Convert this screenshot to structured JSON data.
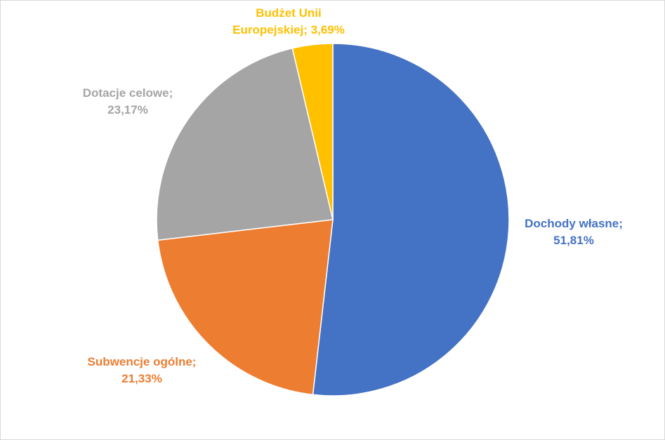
{
  "chart_data": {
    "type": "pie",
    "title": "",
    "start_angle_deg": 0,
    "direction": "clockwise",
    "slices": [
      {
        "category": "Dochody własne",
        "value": 51.81,
        "label_line1": "Dochody własne;",
        "label_line2": "51,81%",
        "color": "#4472C4"
      },
      {
        "category": "Subwencje ogólne",
        "value": 21.33,
        "label_line1": "Subwencje ogólne;",
        "label_line2": "21,33%",
        "color": "#ED7D31"
      },
      {
        "category": "Dotacje celowe",
        "value": 23.17,
        "label_line1": "Dotacje celowe;",
        "label_line2": "23,17%",
        "color": "#A5A5A5"
      },
      {
        "category": "Budżet Unii Europejskiej",
        "value": 3.69,
        "label_line1": "Budżet Unii",
        "label_line2": "Europejskiej; 3,69%",
        "color": "#FFC000"
      }
    ],
    "legend": "none",
    "border_color": "#d9d9d9"
  }
}
